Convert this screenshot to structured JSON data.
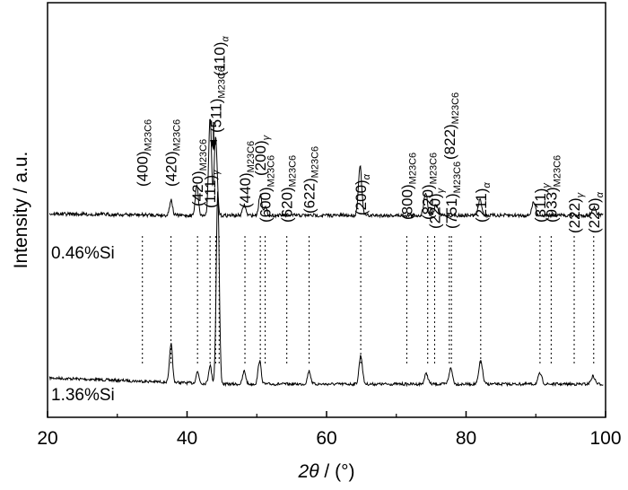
{
  "chart_data": {
    "type": "line",
    "xlabel": {
      "var": "2θ",
      "unit": " / (°)"
    },
    "ylabel": "Intensity / a.u.",
    "xlim": [
      20,
      100
    ],
    "xticks": [
      20,
      40,
      60,
      80,
      100
    ],
    "grid": false,
    "series": [
      {
        "name": "0.46%Si",
        "baseline": 1.0,
        "peaks": [
          [
            37.7,
            0.75
          ],
          [
            41.5,
            0.22
          ],
          [
            43.3,
            0.35
          ],
          [
            44.4,
            3.7
          ],
          [
            48.2,
            0.25
          ],
          [
            50.4,
            0.45
          ],
          [
            57.5,
            0.25
          ],
          [
            64.9,
            0.55
          ],
          [
            74.3,
            0.2
          ],
          [
            77.8,
            0.3
          ],
          [
            82.1,
            0.45
          ],
          [
            90.6,
            0.2
          ],
          [
            98.2,
            0.15
          ]
        ]
      },
      {
        "name": "1.36%Si",
        "baseline": 0.0,
        "peaks": [
          [
            37.7,
            0.3
          ],
          [
            41.4,
            0.6
          ],
          [
            43.3,
            1.85
          ],
          [
            44.1,
            1.5
          ],
          [
            48.2,
            0.2
          ],
          [
            50.5,
            0.4
          ],
          [
            51.2,
            0.15
          ],
          [
            64.8,
            0.95
          ],
          [
            74.2,
            0.45
          ],
          [
            75.7,
            0.2
          ],
          [
            82.0,
            0.3
          ],
          [
            89.7,
            0.25
          ],
          [
            98.3,
            0.15
          ]
        ]
      }
    ],
    "annotations": [
      {
        "main": "(400)",
        "sub": "M23C6",
        "x": 33.6
      },
      {
        "main": "(420)",
        "sub": "M23C6",
        "x": 37.7
      },
      {
        "main": "(420)",
        "sub": "M23C6",
        "x": 41.5
      },
      {
        "main": "(111)",
        "sub": "γ",
        "x": 43.3
      },
      {
        "main": "(511)",
        "sub": "M23C6",
        "x": 44.1
      },
      {
        "main": "(110)",
        "sub": "α",
        "x": 44.6
      },
      {
        "main": "(440)",
        "sub": "M23C6",
        "x": 48.3
      },
      {
        "main": "(200)",
        "sub": "γ",
        "x": 50.5
      },
      {
        "main": "(600)",
        "sub": "M23C6",
        "x": 51.2
      },
      {
        "main": "(620)",
        "sub": "M23C6",
        "x": 54.3
      },
      {
        "main": "(622)",
        "sub": "M23C6",
        "x": 57.5
      },
      {
        "main": "(200)",
        "sub": "α",
        "x": 64.9
      },
      {
        "main": "(800)",
        "sub": "M23C6",
        "x": 71.5
      },
      {
        "main": "(820)",
        "sub": "M23C6",
        "x": 74.5
      },
      {
        "main": "(220)",
        "sub": "γ",
        "x": 75.5
      },
      {
        "main": "(751)",
        "sub": "M23C6",
        "x": 77.9
      },
      {
        "main": "(822)",
        "sub": "M23C6",
        "x": 77.6
      },
      {
        "main": "(211)",
        "sub": "α",
        "x": 82.1
      },
      {
        "main": "(311)",
        "sub": "γ",
        "x": 90.6
      },
      {
        "main": "(933)",
        "sub": "M23C6",
        "x": 92.2
      },
      {
        "main": "(222)",
        "sub": "γ",
        "x": 95.5
      },
      {
        "main": "(220)",
        "sub": "α",
        "x": 98.3
      }
    ]
  }
}
